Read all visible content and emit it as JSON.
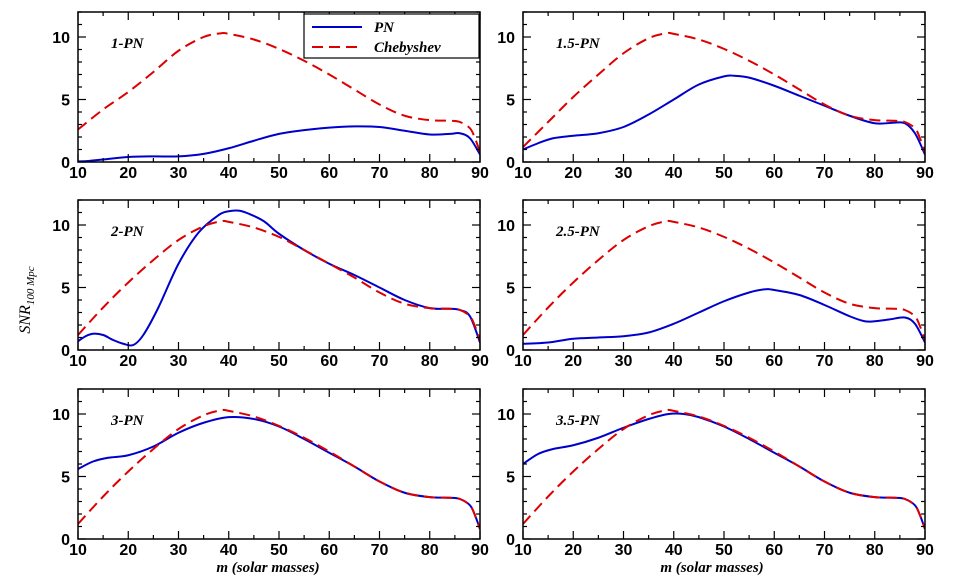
{
  "figure": {
    "ylabel": "SNR",
    "ylabel_subscript": "100 Mpc",
    "xlabel": "m (solar masses)"
  },
  "colors": {
    "PN": "#0000cc",
    "Chebyshev": "#dd0000",
    "axes": "#000000"
  },
  "legend": {
    "entries": [
      {
        "name": "PN",
        "style": "solid",
        "color": "#0000cc"
      },
      {
        "name": "Chebyshev",
        "style": "dashed",
        "color": "#dd0000"
      }
    ]
  },
  "chart_data": [
    {
      "type": "line",
      "label": "1-PN",
      "xlim": [
        10,
        90
      ],
      "ylim": [
        0,
        12
      ],
      "xticks": [
        10,
        20,
        30,
        40,
        50,
        60,
        70,
        80,
        90
      ],
      "yticks": [
        0,
        5,
        10
      ],
      "series": [
        {
          "name": "PN",
          "x": [
            10,
            12,
            15,
            20,
            25,
            30,
            35,
            40,
            45,
            50,
            55,
            60,
            65,
            70,
            75,
            80,
            84,
            86,
            88,
            90
          ],
          "y": [
            0.05,
            0.08,
            0.2,
            0.4,
            0.45,
            0.45,
            0.65,
            1.1,
            1.7,
            2.25,
            2.55,
            2.75,
            2.85,
            2.8,
            2.5,
            2.2,
            2.25,
            2.3,
            1.9,
            0.6
          ]
        },
        {
          "name": "Chebyshev",
          "x": [
            10,
            15,
            20,
            25,
            30,
            35,
            38.5,
            40,
            45,
            50,
            55,
            60,
            65,
            70,
            75,
            80,
            84,
            86,
            88,
            89,
            90
          ],
          "y": [
            2.6,
            4.2,
            5.6,
            7.2,
            8.9,
            10.0,
            10.3,
            10.25,
            9.8,
            9.05,
            8.1,
            7.0,
            5.8,
            4.6,
            3.7,
            3.35,
            3.3,
            3.2,
            2.7,
            1.9,
            0.8
          ]
        }
      ]
    },
    {
      "type": "line",
      "label": "1.5-PN",
      "xlim": [
        10,
        90
      ],
      "ylim": [
        0,
        12
      ],
      "xticks": [
        10,
        20,
        30,
        40,
        50,
        60,
        70,
        80,
        90
      ],
      "yticks": [
        0,
        5,
        10
      ],
      "series": [
        {
          "name": "PN",
          "x": [
            10,
            13,
            16,
            20,
            25,
            30,
            35,
            40,
            45,
            50,
            52,
            55,
            60,
            65,
            70,
            75,
            80,
            84,
            86,
            88,
            90
          ],
          "y": [
            1.0,
            1.5,
            1.9,
            2.1,
            2.3,
            2.8,
            3.8,
            5.0,
            6.2,
            6.85,
            6.9,
            6.75,
            6.1,
            5.3,
            4.5,
            3.7,
            3.1,
            3.15,
            3.1,
            2.3,
            0.6
          ]
        },
        {
          "name": "Chebyshev",
          "x": [
            10,
            15,
            20,
            25,
            30,
            35,
            38.5,
            40,
            45,
            50,
            55,
            60,
            65,
            70,
            75,
            80,
            84,
            86,
            88,
            89,
            90
          ],
          "y": [
            1.2,
            3.2,
            5.2,
            7.0,
            8.7,
            9.9,
            10.3,
            10.25,
            9.8,
            9.05,
            8.1,
            7.0,
            5.8,
            4.6,
            3.7,
            3.35,
            3.3,
            3.2,
            2.7,
            1.9,
            0.8
          ]
        }
      ]
    },
    {
      "type": "line",
      "label": "2-PN",
      "xlim": [
        10,
        90
      ],
      "ylim": [
        0,
        12
      ],
      "xticks": [
        10,
        20,
        30,
        40,
        50,
        60,
        70,
        80,
        90
      ],
      "yticks": [
        0,
        5,
        10
      ],
      "series": [
        {
          "name": "PN",
          "x": [
            10,
            11.5,
            13,
            15,
            17,
            19,
            21,
            23,
            26,
            30,
            34,
            38,
            40,
            42,
            44,
            47,
            50,
            55,
            60,
            65,
            70,
            75,
            80,
            84,
            86,
            88,
            90
          ],
          "y": [
            0.7,
            1.1,
            1.3,
            1.2,
            0.8,
            0.5,
            0.4,
            1.2,
            3.4,
            6.9,
            9.4,
            10.8,
            11.1,
            11.15,
            10.9,
            10.3,
            9.3,
            8.0,
            6.9,
            6.0,
            5.0,
            4.0,
            3.35,
            3.3,
            3.2,
            2.7,
            0.6
          ]
        },
        {
          "name": "Chebyshev",
          "x": [
            10,
            15,
            20,
            25,
            30,
            35,
            38.5,
            40,
            45,
            50,
            55,
            60,
            65,
            70,
            75,
            80,
            84,
            86,
            88,
            89,
            90
          ],
          "y": [
            1.2,
            3.4,
            5.4,
            7.2,
            8.8,
            9.9,
            10.3,
            10.25,
            9.8,
            9.05,
            8.0,
            6.9,
            5.8,
            4.6,
            3.7,
            3.35,
            3.3,
            3.2,
            2.7,
            1.9,
            0.8
          ]
        }
      ]
    },
    {
      "type": "line",
      "label": "2.5-PN",
      "xlim": [
        10,
        90
      ],
      "ylim": [
        0,
        12
      ],
      "xticks": [
        10,
        20,
        30,
        40,
        50,
        60,
        70,
        80,
        90
      ],
      "yticks": [
        0,
        5,
        10
      ],
      "series": [
        {
          "name": "PN",
          "x": [
            10,
            15,
            20,
            25,
            30,
            35,
            40,
            45,
            50,
            55,
            58,
            60,
            65,
            70,
            75,
            78,
            80,
            83,
            86,
            88,
            90
          ],
          "y": [
            0.5,
            0.6,
            0.9,
            1.0,
            1.1,
            1.4,
            2.1,
            3.0,
            3.9,
            4.6,
            4.85,
            4.8,
            4.4,
            3.6,
            2.7,
            2.3,
            2.3,
            2.45,
            2.6,
            2.1,
            0.6
          ]
        },
        {
          "name": "Chebyshev",
          "x": [
            10,
            15,
            20,
            25,
            30,
            35,
            38.5,
            40,
            45,
            50,
            55,
            60,
            65,
            70,
            75,
            80,
            84,
            86,
            88,
            89,
            90
          ],
          "y": [
            1.2,
            3.4,
            5.4,
            7.2,
            8.8,
            9.9,
            10.3,
            10.25,
            9.8,
            9.05,
            8.1,
            7.0,
            5.8,
            4.6,
            3.7,
            3.35,
            3.3,
            3.2,
            2.7,
            1.9,
            0.8
          ]
        }
      ]
    },
    {
      "type": "line",
      "label": "3-PN",
      "xlim": [
        10,
        90
      ],
      "ylim": [
        0,
        12
      ],
      "xticks": [
        10,
        20,
        30,
        40,
        50,
        60,
        70,
        80,
        90
      ],
      "yticks": [
        0,
        5,
        10
      ],
      "series": [
        {
          "name": "PN",
          "x": [
            10,
            13,
            16,
            20,
            25,
            30,
            35,
            40,
            45,
            50,
            55,
            60,
            65,
            70,
            75,
            80,
            84,
            86,
            88,
            89,
            90
          ],
          "y": [
            5.6,
            6.2,
            6.5,
            6.7,
            7.4,
            8.5,
            9.3,
            9.75,
            9.6,
            9.0,
            8.0,
            6.9,
            5.8,
            4.6,
            3.7,
            3.35,
            3.3,
            3.2,
            2.7,
            1.9,
            0.8
          ]
        },
        {
          "name": "Chebyshev",
          "x": [
            10,
            15,
            20,
            25,
            30,
            35,
            38.5,
            40,
            45,
            50,
            55,
            60,
            65,
            70,
            75,
            80,
            84,
            86,
            88,
            89,
            90
          ],
          "y": [
            1.2,
            3.4,
            5.4,
            7.2,
            8.8,
            9.9,
            10.3,
            10.25,
            9.8,
            9.05,
            8.1,
            7.0,
            5.8,
            4.6,
            3.7,
            3.35,
            3.3,
            3.2,
            2.7,
            1.9,
            0.8
          ]
        }
      ]
    },
    {
      "type": "line",
      "label": "3.5-PN",
      "xlim": [
        10,
        90
      ],
      "ylim": [
        0,
        12
      ],
      "xticks": [
        10,
        20,
        30,
        40,
        50,
        60,
        70,
        80,
        90
      ],
      "yticks": [
        0,
        5,
        10
      ],
      "series": [
        {
          "name": "PN",
          "x": [
            10,
            13,
            16,
            20,
            25,
            30,
            35,
            39,
            42,
            45,
            50,
            55,
            60,
            65,
            70,
            75,
            80,
            84,
            86,
            88,
            89,
            90
          ],
          "y": [
            6.0,
            6.8,
            7.2,
            7.5,
            8.1,
            8.9,
            9.6,
            10.0,
            10.0,
            9.75,
            9.0,
            8.0,
            6.9,
            5.8,
            4.6,
            3.7,
            3.35,
            3.3,
            3.2,
            2.7,
            1.9,
            0.8
          ]
        },
        {
          "name": "Chebyshev",
          "x": [
            10,
            15,
            20,
            25,
            30,
            35,
            38.5,
            40,
            45,
            50,
            55,
            60,
            65,
            70,
            75,
            80,
            84,
            86,
            88,
            89,
            90
          ],
          "y": [
            1.2,
            3.4,
            5.4,
            7.2,
            8.8,
            9.9,
            10.3,
            10.25,
            9.8,
            9.05,
            8.1,
            7.0,
            5.8,
            4.6,
            3.7,
            3.35,
            3.3,
            3.2,
            2.7,
            1.9,
            0.8
          ]
        }
      ]
    }
  ]
}
